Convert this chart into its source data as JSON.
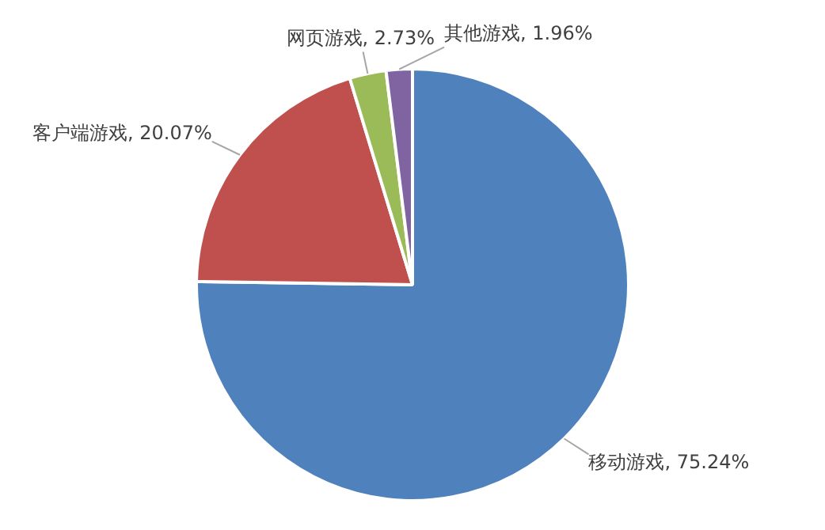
{
  "chart_data": {
    "type": "pie",
    "categories": [
      "移动游戏",
      "客户端游戏",
      "网页游戏",
      "其他游戏"
    ],
    "values": [
      75.24,
      20.07,
      2.73,
      1.96
    ],
    "colors": [
      "#4f81bd",
      "#c0504d",
      "#9bbb59",
      "#8064a2"
    ],
    "value_labels": [
      "75.24%",
      "20.07%",
      "2.73%",
      "1.96%"
    ],
    "legend": false
  }
}
